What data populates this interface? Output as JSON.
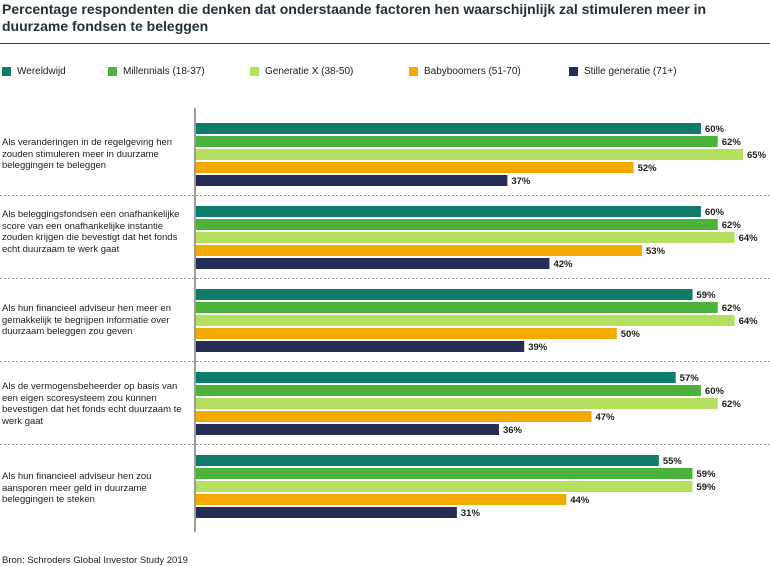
{
  "title": "Percentage respondenten die denken dat onderstaande factoren hen waarschijnlijk zal stimuleren meer in duurzame fondsen te beleggen",
  "source": "Bron: Schroders Global Investor Study 2019",
  "chart_data": {
    "type": "bar",
    "orientation": "horizontal",
    "title": "Percentage respondenten die denken dat onderstaande factoren hen waarschijnlijk zal stimuleren meer in duurzame fondsen te beleggen",
    "categories": [
      "Als veranderingen in de regelgeving hen zouden stimuleren meer in duurzame beleggingen te beleggen",
      "Als beleggingsfondsen een onafhankelijke score van een onafhankelijke instantie zouden krijgen die bevestigt dat het fonds echt duurzaam te werk gaat",
      "Als hun financieel adviseur hen meer en gemakkelijk te begrijpen informatie over duurzaam beleggen zou geven",
      "Als de vermogensbeheerder op basis van een eigen scoresysteem zou kunnen bevestigen dat het fonds echt duurzaam te werk gaat",
      "Als hun financieel adviseur hen zou aansporen meer geld in duurzame beleggingen te steken"
    ],
    "series": [
      {
        "name": "Wereldwijd",
        "color": "#0f7b6a",
        "values": [
          60,
          60,
          59,
          57,
          55
        ]
      },
      {
        "name": "Millennials (18-37)",
        "color": "#4cb23c",
        "values": [
          62,
          62,
          62,
          60,
          59
        ]
      },
      {
        "name": "Generatie X (38-50)",
        "color": "#b5df5f",
        "values": [
          65,
          64,
          64,
          62,
          59
        ]
      },
      {
        "name": "Babyboomers (51-70)",
        "color": "#f3a900",
        "values": [
          52,
          53,
          50,
          47,
          44
        ]
      },
      {
        "name": "Stille generatie (71+)",
        "color": "#262d54",
        "values": [
          37,
          42,
          39,
          36,
          31
        ]
      }
    ],
    "value_suffix": "%",
    "xlim": [
      0,
      100
    ],
    "grid": false,
    "legend_position": "top"
  }
}
